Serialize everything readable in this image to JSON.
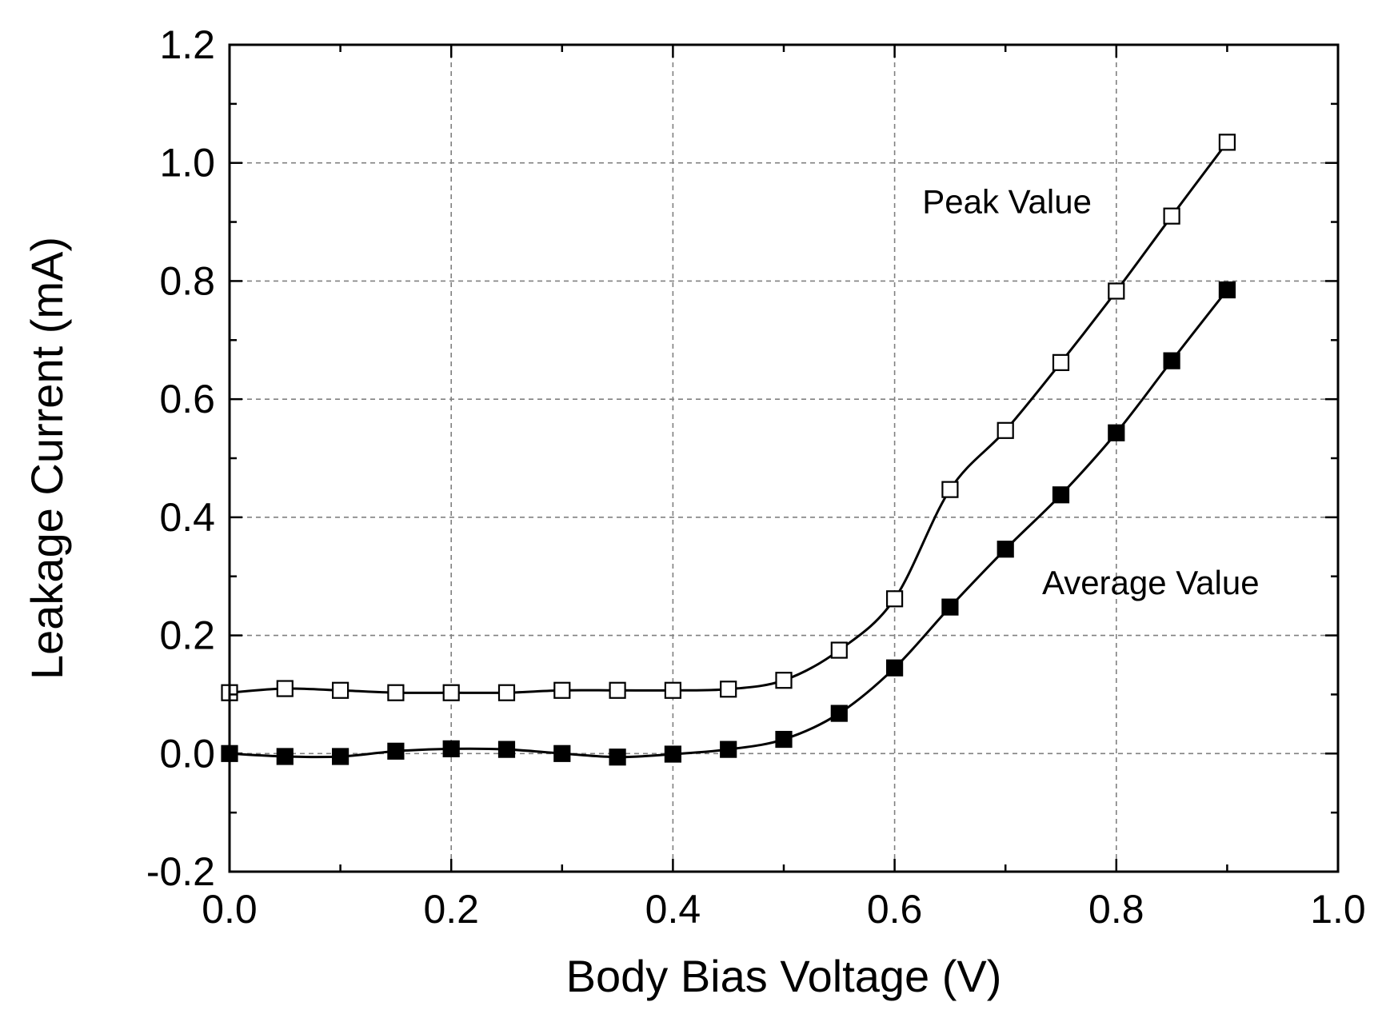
{
  "chart_data": {
    "type": "line",
    "title": "",
    "xlabel": "Body Bias Voltage (V)",
    "ylabel": "Leakage Current (mA)",
    "xlim": [
      0.0,
      1.0
    ],
    "ylim": [
      -0.2,
      1.2
    ],
    "grid": true,
    "x_ticks": [
      0.0,
      0.2,
      0.4,
      0.6,
      0.8,
      1.0
    ],
    "x_tick_labels": [
      "0.0",
      "0.2",
      "0.4",
      "0.6",
      "0.8",
      "1.0"
    ],
    "y_ticks": [
      -0.2,
      0.0,
      0.2,
      0.4,
      0.6,
      0.8,
      1.0,
      1.2
    ],
    "y_tick_labels": [
      "-0.2",
      "0.0",
      "0.2",
      "0.4",
      "0.6",
      "0.8",
      "1.0",
      "1.2"
    ],
    "x": [
      0.0,
      0.05,
      0.1,
      0.15,
      0.2,
      0.25,
      0.3,
      0.35,
      0.4,
      0.45,
      0.5,
      0.55,
      0.6,
      0.65,
      0.7,
      0.75,
      0.8,
      0.85,
      0.9
    ],
    "series": [
      {
        "name": "Peak Value",
        "marker": "open-square",
        "values": [
          0.103,
          0.11,
          0.107,
          0.103,
          0.103,
          0.103,
          0.107,
          0.107,
          0.107,
          0.109,
          0.124,
          0.175,
          0.262,
          0.447,
          0.547,
          0.662,
          0.783,
          0.91,
          1.035
        ]
      },
      {
        "name": "Average Value",
        "marker": "filled-square",
        "values": [
          0.0,
          -0.005,
          -0.005,
          0.004,
          0.008,
          0.007,
          0.0,
          -0.006,
          -0.001,
          0.007,
          0.024,
          0.068,
          0.145,
          0.248,
          0.346,
          0.438,
          0.543,
          0.665,
          0.785
        ]
      }
    ],
    "annotations": [
      {
        "text": "Peak Value",
        "series": "Peak Value"
      },
      {
        "text": "Average Value",
        "series": "Average Value"
      }
    ]
  }
}
